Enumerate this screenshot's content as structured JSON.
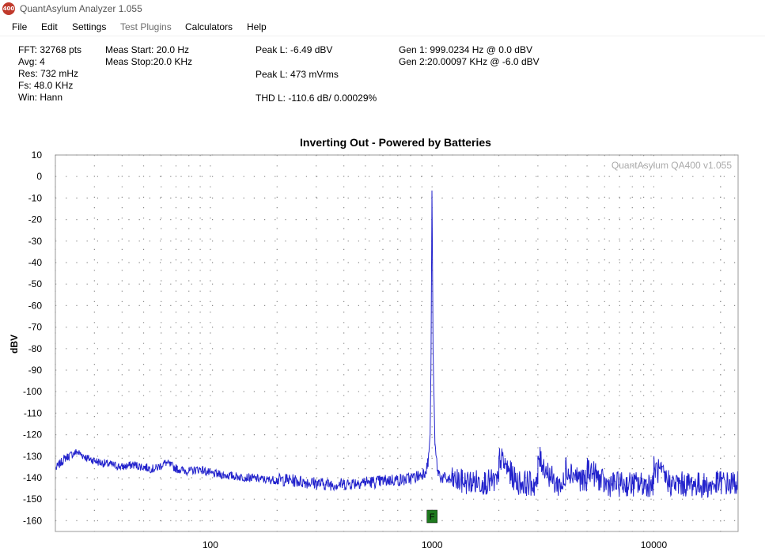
{
  "app": {
    "icon_text": "400",
    "title": "QuantAsylum Analyzer 1.055"
  },
  "menu": [
    {
      "label": "File",
      "enabled": true
    },
    {
      "label": "Edit",
      "enabled": true
    },
    {
      "label": "Settings",
      "enabled": true
    },
    {
      "label": "Test Plugins",
      "enabled": false
    },
    {
      "label": "Calculators",
      "enabled": true
    },
    {
      "label": "Help",
      "enabled": true
    }
  ],
  "info": {
    "fft": "FFT: 32768 pts",
    "avg": "Avg: 4",
    "res": "Res: 732 mHz",
    "fs": "Fs: 48.0 KHz",
    "win": "Win: Hann",
    "meas_start": "Meas Start: 20.0 Hz",
    "meas_stop": "Meas Stop:20.0 KHz",
    "peak_dbv": "Peak L: -6.49 dBV",
    "peak_vrms": "Peak L: 473 mVrms",
    "thd": "THD L: -110.6 dB/ 0.00029%",
    "gen1": "Gen 1: 999.0234 Hz @ 0.0  dBV",
    "gen2": "Gen 2:20.00097 KHz @ -6.0  dBV"
  },
  "chart_data": {
    "type": "line",
    "title": "Inverting Out - Powered by Batteries",
    "xlabel": "",
    "ylabel": "dBV",
    "watermark": "QuantAsylum QA400 v1.055",
    "x_scale": "log",
    "xlim": [
      20,
      24000
    ],
    "ylim": [
      -165,
      10
    ],
    "x_ticks": [
      100,
      1000,
      10000
    ],
    "y_ticks": [
      10,
      0,
      -10,
      -20,
      -30,
      -40,
      -50,
      -60,
      -70,
      -80,
      -90,
      -100,
      -110,
      -120,
      -130,
      -140,
      -150,
      -160
    ],
    "grid": true,
    "line_color": "#2222cc",
    "marker_label": "F",
    "marker_x": 1000,
    "marker_color": "#1e7a1e",
    "series": [
      {
        "x": [
          20,
          22,
          25,
          28,
          32,
          36,
          40,
          45,
          50,
          56,
          63,
          71,
          80,
          90,
          100,
          120,
          150,
          180,
          220,
          270,
          330,
          400,
          480,
          560,
          650,
          750,
          820,
          880,
          930,
          960,
          980,
          990,
          999,
          1010,
          1030,
          1060,
          1100,
          1200,
          1400,
          1700,
          1999,
          2001,
          2400,
          2999,
          3001,
          3600,
          3999,
          4001,
          4999,
          5001,
          6000,
          7000,
          8000,
          9999,
          10001,
          12000,
          15000,
          18000,
          20000,
          22000,
          24000
        ],
        "y": [
          -136,
          -131,
          -128,
          -131,
          -133,
          -134,
          -135,
          -134,
          -135,
          -136,
          -133,
          -136,
          -137,
          -136,
          -138,
          -139,
          -140,
          -141,
          -141,
          -142,
          -143,
          -143,
          -142,
          -142,
          -141,
          -141,
          -140,
          -139,
          -137,
          -133,
          -120,
          -80,
          -6.5,
          -80,
          -125,
          -137,
          -140,
          -141,
          -142,
          -142,
          -142,
          -130,
          -142,
          -143,
          -130,
          -143,
          -143,
          -135,
          -143,
          -135,
          -143,
          -143,
          -143,
          -143,
          -135,
          -143,
          -143,
          -144,
          -142,
          -143,
          -142
        ]
      }
    ]
  }
}
